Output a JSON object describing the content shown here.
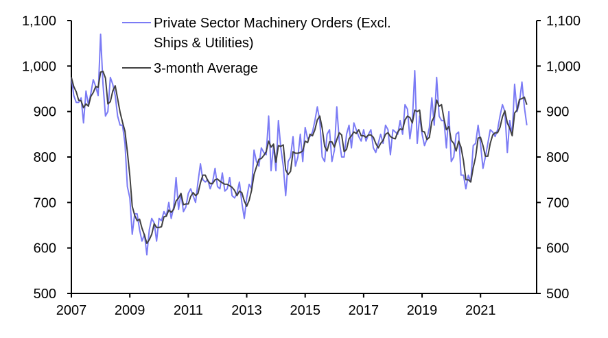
{
  "chart_data": {
    "type": "line",
    "title": "",
    "xlabel": "",
    "ylabel": "",
    "ylim": [
      500,
      1100
    ],
    "y_ticks": [
      "500",
      "600",
      "700",
      "800",
      "900",
      "1,000",
      "1,100"
    ],
    "y_tick_values": [
      500,
      600,
      700,
      800,
      900,
      1000,
      1100
    ],
    "x_ticks": [
      "2007",
      "2009",
      "2011",
      "2013",
      "2015",
      "2017",
      "2019",
      "2021"
    ],
    "x_tick_values": [
      2007,
      2009,
      2011,
      2013,
      2015,
      2017,
      2019,
      2021
    ],
    "xlim": [
      2007,
      2022.92
    ],
    "start": "2007-01",
    "frequency": "monthly",
    "colors": {
      "raw": "#7b7bf5",
      "avg": "#404040"
    },
    "legend": {
      "placement": "top-left",
      "raw_label_line1": "Private Sector Machinery Orders (Excl.",
      "raw_label_line2": "Ships & Utilities)",
      "avg_label": "3-month Average"
    },
    "series": [
      {
        "name": "Private Sector Machinery Orders (Excl. Ships & Utilities)",
        "values": [
          975,
          935,
          920,
          920,
          930,
          875,
          945,
          915,
          940,
          970,
          955,
          935,
          1070,
          960,
          890,
          900,
          975,
          960,
          935,
          890,
          870,
          870,
          830,
          735,
          710,
          630,
          675,
          675,
          640,
          615,
          630,
          585,
          640,
          665,
          655,
          615,
          665,
          660,
          680,
          670,
          700,
          665,
          690,
          755,
          685,
          720,
          680,
          690,
          720,
          730,
          715,
          700,
          745,
          785,
          750,
          745,
          750,
          730,
          745,
          775,
          735,
          730,
          765,
          725,
          730,
          755,
          715,
          710,
          720,
          745,
          700,
          665,
          710,
          740,
          730,
          815,
          790,
          780,
          820,
          810,
          805,
          890,
          770,
          825,
          770,
          880,
          820,
          780,
          715,
          790,
          800,
          845,
          780,
          800,
          850,
          790,
          865,
          840,
          845,
          855,
          880,
          910,
          880,
          800,
          790,
          850,
          860,
          790,
          815,
          910,
          835,
          800,
          800,
          850,
          870,
          820,
          875,
          860,
          845,
          835,
          860,
          835,
          850,
          860,
          820,
          810,
          830,
          850,
          830,
          870,
          860,
          805,
          860,
          855,
          850,
          880,
          850,
          915,
          905,
          840,
          880,
          990,
          830,
          890,
          850,
          825,
          840,
          865,
          930,
          870,
          975,
          890,
          880,
          880,
          820,
          900,
          790,
          800,
          850,
          855,
          760,
          760,
          730,
          760,
          745,
          825,
          830,
          870,
          830,
          775,
          800,
          830,
          860,
          855,
          845,
          860,
          890,
          915,
          900,
          810,
          880,
          850,
          960,
          900,
          920,
          965,
          910,
          870
        ]
      },
      {
        "name": "3-month Average",
        "derived_from": "rolling 3-month mean of first series",
        "window": 3
      }
    ]
  }
}
